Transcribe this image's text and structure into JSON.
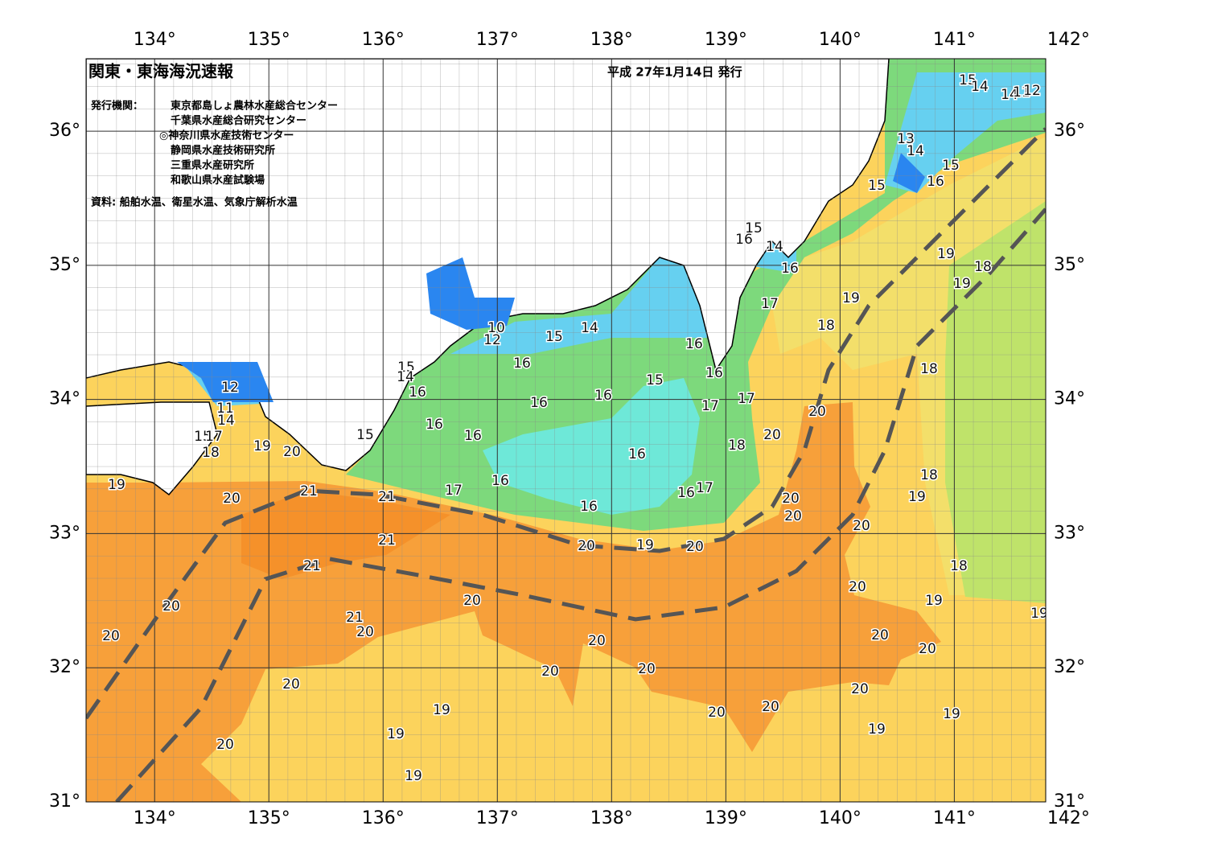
{
  "header": {
    "title": "関東・東海海況速報",
    "date": "平成 27年1月14日 発行"
  },
  "agencies": {
    "label": "発行機関：",
    "items": [
      "東京都島しょ農林水産総合センター",
      "千葉県水産総合研究センター",
      "◎神奈川県水産技術センター",
      "静岡県水産技術研究所",
      "三重県水産研究所",
      "和歌山県水産試験場"
    ]
  },
  "source": "資料: 船舶水温、衛星水温、気象庁解析水温",
  "map": {
    "lon_range": [
      133.4,
      141.8
    ],
    "lat_range": [
      31,
      36.54
    ],
    "lon_ticks": [
      {
        "value": 134,
        "label": "134°"
      },
      {
        "value": 135,
        "label": "135°"
      },
      {
        "value": 136,
        "label": "136°"
      },
      {
        "value": 137,
        "label": "137°"
      },
      {
        "value": 138,
        "label": "138°"
      },
      {
        "value": 139,
        "label": "139°"
      },
      {
        "value": 140,
        "label": "140°"
      },
      {
        "value": 141,
        "label": "141°"
      },
      {
        "value": 142,
        "label": "142°"
      }
    ],
    "lat_ticks": [
      {
        "value": 31,
        "label": "31°"
      },
      {
        "value": 32,
        "label": "32°"
      },
      {
        "value": 33,
        "label": "33°"
      },
      {
        "value": 34,
        "label": "34°"
      },
      {
        "value": 35,
        "label": "35°"
      },
      {
        "value": 36,
        "label": "36°"
      }
    ],
    "contour_labels": [
      15,
      14,
      14,
      11,
      12,
      13,
      14,
      15,
      16,
      15,
      15,
      16,
      14,
      16,
      17,
      19,
      19,
      18,
      19,
      18,
      10,
      12,
      15,
      14,
      16,
      16,
      15,
      16,
      16,
      16,
      17,
      17,
      20,
      20,
      18,
      18,
      15,
      14,
      16,
      12,
      11,
      14,
      16,
      16,
      15,
      15,
      17,
      18,
      19,
      20,
      16,
      16,
      17,
      16,
      17,
      16,
      18,
      19,
      20,
      20,
      20,
      19,
      20,
      21,
      21,
      21,
      20,
      19,
      20,
      21,
      20,
      18,
      19,
      20,
      19,
      20,
      20,
      21,
      20,
      20,
      20,
      20,
      20,
      20,
      20,
      20,
      20,
      20,
      19,
      19,
      19,
      19,
      20,
      19
    ]
  }
}
